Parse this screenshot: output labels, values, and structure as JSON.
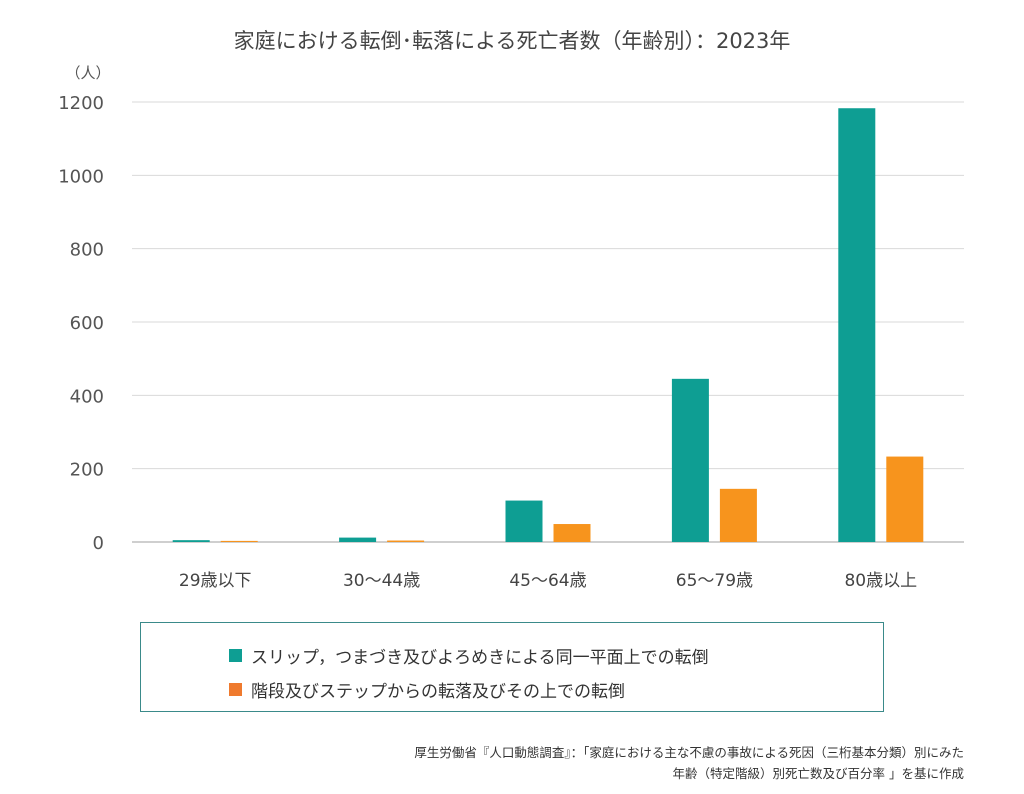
{
  "chart_data": {
    "type": "bar",
    "title": "家庭における転倒･転落による死亡者数（年齢別）：2023年",
    "ylabel": "（人）",
    "xlabel": "",
    "ylim": [
      0,
      1200
    ],
    "yticks": [
      0,
      200,
      400,
      600,
      800,
      1000,
      1200
    ],
    "categories": [
      "29歳以下",
      "30～44歳",
      "45～64歳",
      "65～79歳",
      "80歳以上"
    ],
    "series": [
      {
        "name": "スリップ，つまづき及びよろめきによる同一平面上での転倒",
        "color": "#0e9e93",
        "values": [
          5,
          12,
          113,
          445,
          1183
        ]
      },
      {
        "name": "階段及びステップからの転落及びその上での転倒",
        "color": "#f7941d",
        "values": [
          3,
          4,
          49,
          145,
          233
        ]
      }
    ],
    "grid": true,
    "legend_position": "bottom"
  },
  "legend": {
    "series1_label": "スリップ，つまづき及びよろめきによる同一平面上での転倒",
    "series2_label": "階段及びステップからの転落及びその上での転倒",
    "series1_color": "#0e9e93",
    "series2_color": "#ef7a2e"
  },
  "source": {
    "line1": "厚生労働省『人口動態調査』：「家庭における主な不慮の事故による死因（三桁基本分類）別にみた",
    "line2": "年齢（特定階級）別死亡数及び百分率 」を基に作成"
  }
}
